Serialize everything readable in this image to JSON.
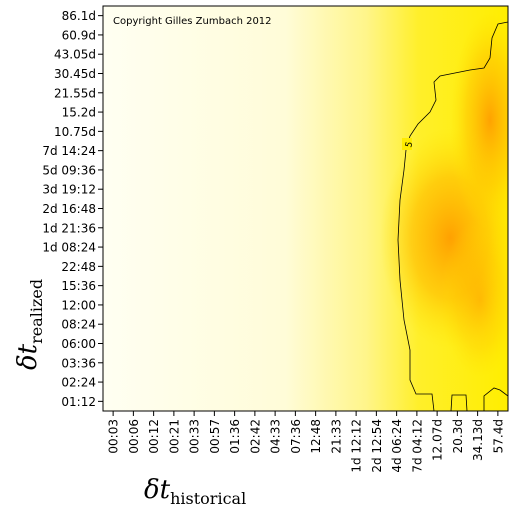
{
  "chart_data": {
    "type": "heatmap",
    "copyright": "Copyright Gilles Zumbach 2012",
    "xlabel_main": "δt",
    "xlabel_sub": "historical",
    "ylabel_main": "δt",
    "ylabel_sub": "realized",
    "x_ticks": [
      "00:03",
      "00:06",
      "00:12",
      "00:21",
      "00:33",
      "00:57",
      "01:36",
      "02:42",
      "04:33",
      "07:36",
      "12:48",
      "21:33",
      "1d 12:12",
      "2d 12:54",
      "4d 06:24",
      "7d 04:12",
      "12.07d",
      "20.3d",
      "34.13d",
      "57.4d"
    ],
    "y_ticks": [
      "01:12",
      "02:24",
      "03:36",
      "06:00",
      "08:24",
      "12:00",
      "15:36",
      "22:48",
      "1d 08:24",
      "1d 21:36",
      "2d 16:48",
      "3d 19:12",
      "5d 09:36",
      "7d 14:24",
      "10.75d",
      "15.2d",
      "21.55d",
      "30.45d",
      "43.05d",
      "60.9d",
      "86.1d"
    ],
    "contour_level_label": "5",
    "colors": {
      "low": "#fffff0",
      "mid": "#ffff33",
      "high": "#ff9900",
      "contour": "#000000"
    }
  }
}
